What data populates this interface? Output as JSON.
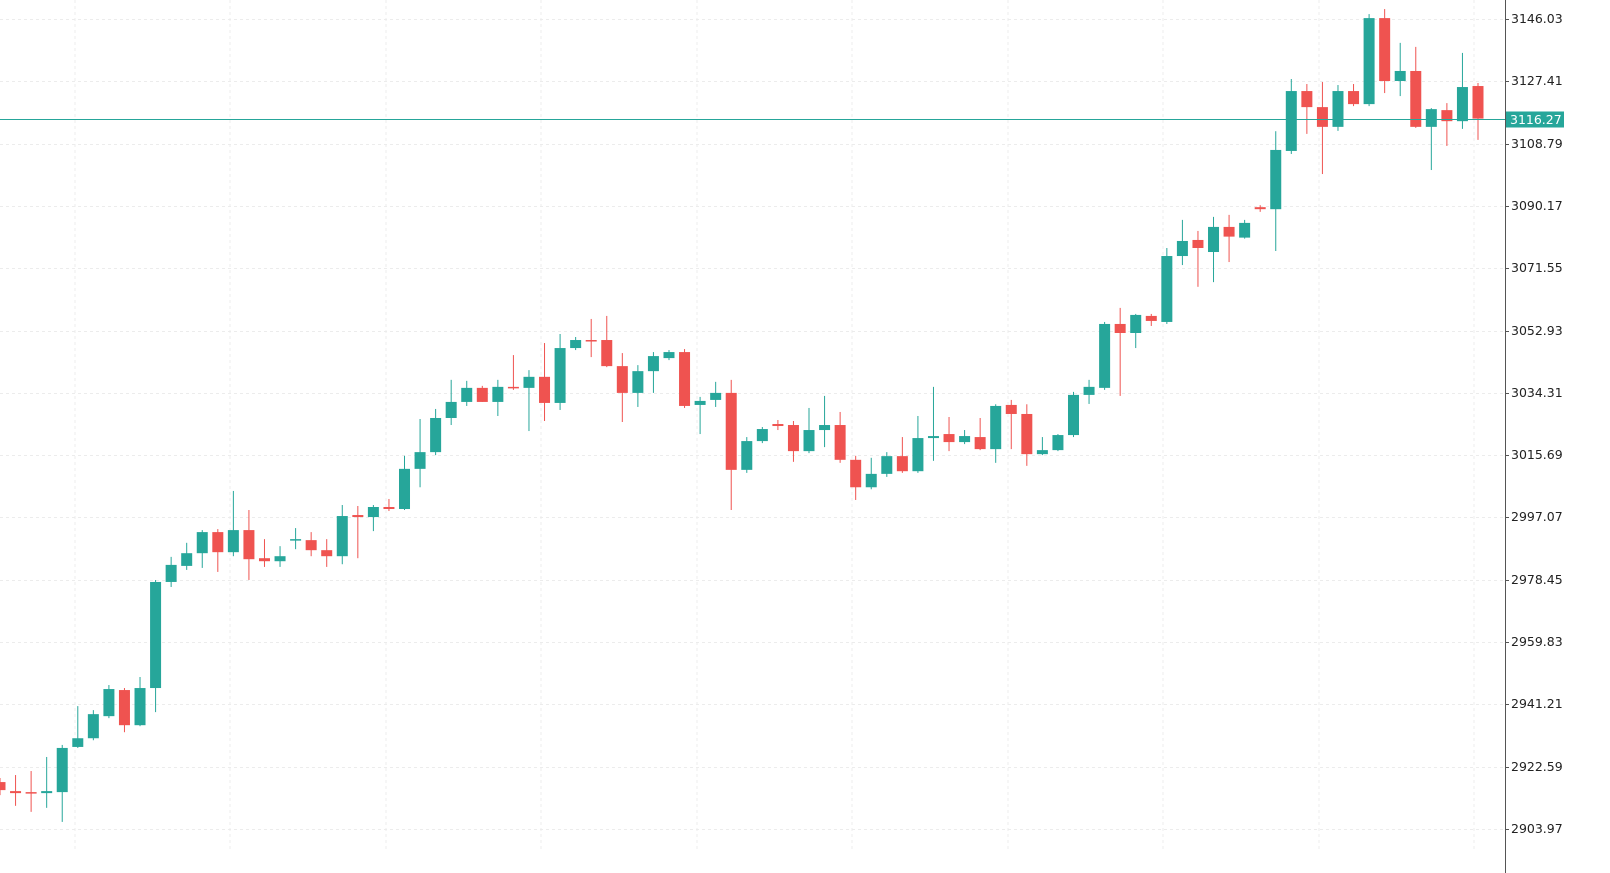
{
  "chart_data": {
    "type": "candlestick",
    "up_color": "#26a69a",
    "down_color": "#ef5350",
    "grid": true,
    "ylim": [
      2898.0,
      3151.71
    ],
    "yticks": [
      2903.97,
      2922.59,
      2941.21,
      2959.83,
      2978.45,
      2997.07,
      3015.69,
      3034.31,
      3052.93,
      3071.55,
      3090.17,
      3108.79,
      3127.41,
      3146.03
    ],
    "current_price": 3116.27,
    "current_price_color": "#26a69a",
    "open": [
      2918.0,
      2915.3,
      2915.0,
      2914.7,
      2915.0,
      2928.5,
      2931.1,
      2937.7,
      2945.5,
      2935.0,
      2946.1,
      2977.8,
      2982.6,
      2986.4,
      2992.7,
      2986.7,
      2993.3,
      2984.9,
      2984.0,
      2990.3,
      2990.3,
      2987.3,
      2985.5,
      2997.8,
      2997.2,
      3000.2,
      2999.6,
      3011.6,
      3016.6,
      3026.8,
      3031.6,
      3035.8,
      3031.6,
      3036.1,
      3035.8,
      3039.1,
      3031.3,
      3047.7,
      3050.1,
      3050.1,
      3042.3,
      3034.3,
      3040.8,
      3044.7,
      3046.5,
      3030.7,
      3032.2,
      3034.3,
      3011.3,
      3019.9,
      3025.0,
      3024.7,
      3016.9,
      3023.2,
      3024.7,
      3014.3,
      3006.1,
      3010.1,
      3015.4,
      3010.9,
      3020.8,
      3022.0,
      3019.6,
      3021.1,
      3017.5,
      3030.7,
      3028.0,
      3016.0,
      3017.2,
      3021.7,
      3033.7,
      3035.8,
      3054.9,
      3052.2,
      3057.3,
      3055.5,
      3075.2,
      3080.0,
      3076.4,
      3083.9,
      3080.7,
      3089.8,
      3089.2,
      3106.6,
      3124.5,
      3119.7,
      3113.8,
      3124.5,
      3120.6,
      3146.3,
      3127.5,
      3130.5,
      3113.8,
      3118.8,
      3115.5,
      3126.0
    ],
    "high": [
      2919.2,
      2920.1,
      2921.3,
      2925.5,
      2929.1,
      2940.7,
      2939.5,
      2947.0,
      2946.1,
      2949.4,
      2978.4,
      2985.3,
      2989.5,
      2993.3,
      2993.6,
      3005.0,
      2999.3,
      2990.6,
      2988.5,
      2993.9,
      2992.7,
      2990.6,
      3000.8,
      3000.5,
      3000.8,
      3002.6,
      3015.5,
      3026.5,
      3029.5,
      3038.2,
      3037.9,
      3036.4,
      3038.2,
      3045.6,
      3041.1,
      3049.2,
      3051.9,
      3051.0,
      3056.4,
      3057.3,
      3046.2,
      3042.6,
      3046.5,
      3047.1,
      3047.4,
      3033.1,
      3037.6,
      3038.2,
      3021.1,
      3024.1,
      3026.2,
      3025.9,
      3029.8,
      3033.4,
      3028.6,
      3015.5,
      3014.9,
      3016.6,
      3021.1,
      3027.4,
      3036.1,
      3027.1,
      3023.2,
      3026.8,
      3030.9,
      3032.2,
      3030.9,
      3021.1,
      3022.0,
      3034.6,
      3038.2,
      3055.5,
      3059.7,
      3057.9,
      3057.9,
      3077.6,
      3086.0,
      3082.7,
      3086.9,
      3087.5,
      3086.0,
      3090.4,
      3112.5,
      3128.1,
      3126.6,
      3127.2,
      3126.3,
      3126.6,
      3147.5,
      3149.0,
      3138.9,
      3137.7,
      3119.4,
      3120.9,
      3135.9,
      3126.9
    ],
    "low": [
      2914.1,
      2910.9,
      2909.1,
      2910.3,
      2906.1,
      2928.2,
      2930.5,
      2937.1,
      2932.9,
      2934.7,
      2938.9,
      2976.3,
      2981.4,
      2982.0,
      2980.8,
      2985.5,
      2978.4,
      2982.3,
      2982.3,
      2987.6,
      2985.5,
      2982.3,
      2983.1,
      2984.9,
      2993.0,
      2999.0,
      2999.3,
      3006.1,
      3015.7,
      3024.7,
      3030.4,
      3031.6,
      3027.4,
      3035.2,
      3022.9,
      3025.9,
      3029.2,
      3047.1,
      3045.0,
      3042.0,
      3025.6,
      3030.1,
      3034.3,
      3044.1,
      3029.8,
      3022.0,
      3030.1,
      2999.3,
      3010.4,
      3019.3,
      3023.2,
      3013.7,
      3016.3,
      3018.1,
      3013.4,
      3002.3,
      3005.5,
      3009.2,
      3010.4,
      3010.4,
      3014.0,
      3016.9,
      3019.0,
      3017.2,
      3013.4,
      3017.5,
      3012.5,
      3015.7,
      3016.9,
      3021.1,
      3031.0,
      3035.2,
      3033.4,
      3047.7,
      3054.3,
      3054.9,
      3072.5,
      3066.0,
      3067.4,
      3073.4,
      3080.4,
      3088.4,
      3076.7,
      3105.7,
      3111.7,
      3099.7,
      3112.6,
      3120.0,
      3120.0,
      3123.9,
      3123.0,
      3113.5,
      3100.9,
      3108.1,
      3113.2,
      3109.9
    ],
    "close": [
      2915.6,
      2914.7,
      2914.7,
      2915.3,
      2928.2,
      2931.1,
      2938.3,
      2945.8,
      2935.0,
      2946.1,
      2977.8,
      2982.9,
      2986.4,
      2992.7,
      2986.7,
      2993.3,
      2984.6,
      2984.0,
      2985.5,
      2990.6,
      2987.3,
      2985.5,
      2997.5,
      2997.2,
      3000.2,
      2999.6,
      3011.6,
      3016.6,
      3026.8,
      3031.6,
      3035.8,
      3031.6,
      3036.1,
      3035.8,
      3039.1,
      3031.3,
      3047.7,
      3050.1,
      3049.8,
      3042.3,
      3034.3,
      3040.8,
      3045.3,
      3046.5,
      3030.4,
      3031.9,
      3034.3,
      3011.3,
      3019.9,
      3023.5,
      3024.4,
      3016.9,
      3023.2,
      3024.7,
      3014.3,
      3006.1,
      3010.1,
      3015.4,
      3010.9,
      3020.8,
      3021.4,
      3019.6,
      3021.4,
      3017.5,
      3030.4,
      3028.0,
      3016.0,
      3017.2,
      3021.7,
      3033.7,
      3036.1,
      3054.9,
      3052.2,
      3057.6,
      3055.8,
      3075.2,
      3079.7,
      3077.6,
      3083.9,
      3081.0,
      3085.1,
      3089.2,
      3106.9,
      3124.5,
      3119.7,
      3113.8,
      3124.5,
      3120.6,
      3146.3,
      3127.5,
      3130.5,
      3113.8,
      3119.1,
      3115.5,
      3125.7,
      3116.27
    ]
  }
}
